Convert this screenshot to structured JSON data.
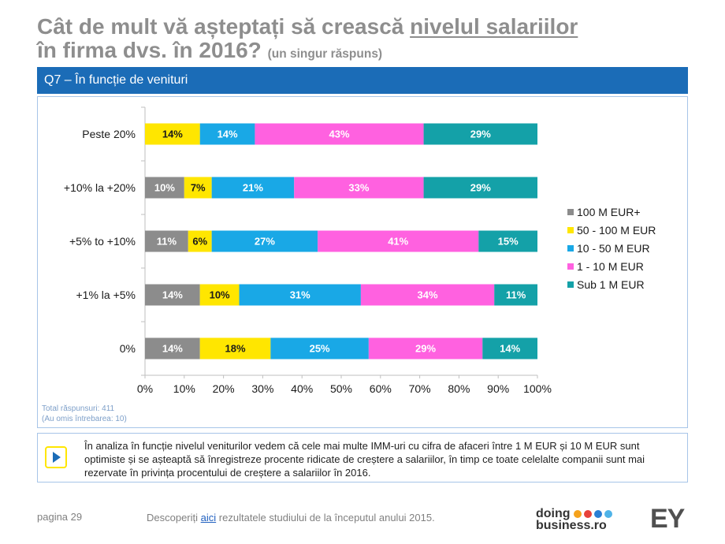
{
  "theme": {
    "accent": "#1b6cb7",
    "title_gray": "#8e8e8e",
    "panel_border": "#a7c5e8",
    "brand_yellow": "#ffe600"
  },
  "header": {
    "title_part1": "Cât de mult vă așteptați să crească",
    "title_underlined": "nivelul salariilor",
    "title_part2": "în firma dvs. în 2016?",
    "subtitle": "(un singur răspuns)"
  },
  "section_bar": {
    "label": "Q7 – În funcție de venituri"
  },
  "chart_data": {
    "type": "bar",
    "orientation": "horizontal",
    "stacked": true,
    "title": "",
    "xlabel": "",
    "ylabel": "",
    "grid": false,
    "legend_position": "right",
    "xlim": [
      0,
      100
    ],
    "x_ticks": [
      0,
      10,
      20,
      30,
      40,
      50,
      60,
      70,
      80,
      90,
      100
    ],
    "x_tick_labels": [
      "0%",
      "10%",
      "20%",
      "30%",
      "40%",
      "50%",
      "60%",
      "70%",
      "80%",
      "90%",
      "100%"
    ],
    "categories": [
      "Peste 20%",
      "+10% la +20%",
      "+5% to +10%",
      "+1% la +5%",
      "0%"
    ],
    "series": [
      {
        "name": "100 M EUR+",
        "color": "#8c8c8c",
        "label_color": "#ffffff",
        "values": [
          0,
          10,
          11,
          14,
          14
        ]
      },
      {
        "name": "50 - 100 M EUR",
        "color": "#ffe600",
        "label_color": "#1a1a1a",
        "values": [
          14,
          7,
          6,
          10,
          18
        ]
      },
      {
        "name": "10 - 50 M EUR",
        "color": "#19a8e6",
        "label_color": "#ffffff",
        "values": [
          14,
          21,
          27,
          31,
          25
        ]
      },
      {
        "name": "1 - 10 M EUR",
        "color": "#ff61e0",
        "label_color": "#ffffff",
        "values": [
          43,
          33,
          41,
          34,
          29
        ]
      },
      {
        "name": "Sub 1 M EUR",
        "color": "#14a1a8",
        "label_color": "#ffffff",
        "values": [
          29,
          29,
          15,
          11,
          14
        ]
      }
    ]
  },
  "notes": {
    "total": "Total răspunsuri: 411",
    "omitted": "(Au omis întrebarea: 10)"
  },
  "insight": {
    "icon": "play-arrow-icon",
    "text": "În analiza în funcție nivelul veniturilor vedem că cele mai multe IMM-uri cu cifra de afaceri între 1 M EUR și 10 M EUR sunt optimiste și se așteaptă să înregistreze procente ridicate de creștere a salariilor, în timp ce toate celelalte companii sunt mai rezervate în privința procentului de creștere a salariilor în 2016."
  },
  "footer": {
    "page": "pagina 29",
    "cta_before": "Descoperiți",
    "cta_link": "aici",
    "cta_after": "rezultatele studiului de la începutul anului 2015."
  },
  "logos": {
    "doing_word": "doing",
    "business_word": "business.ro",
    "ey": "EY"
  }
}
